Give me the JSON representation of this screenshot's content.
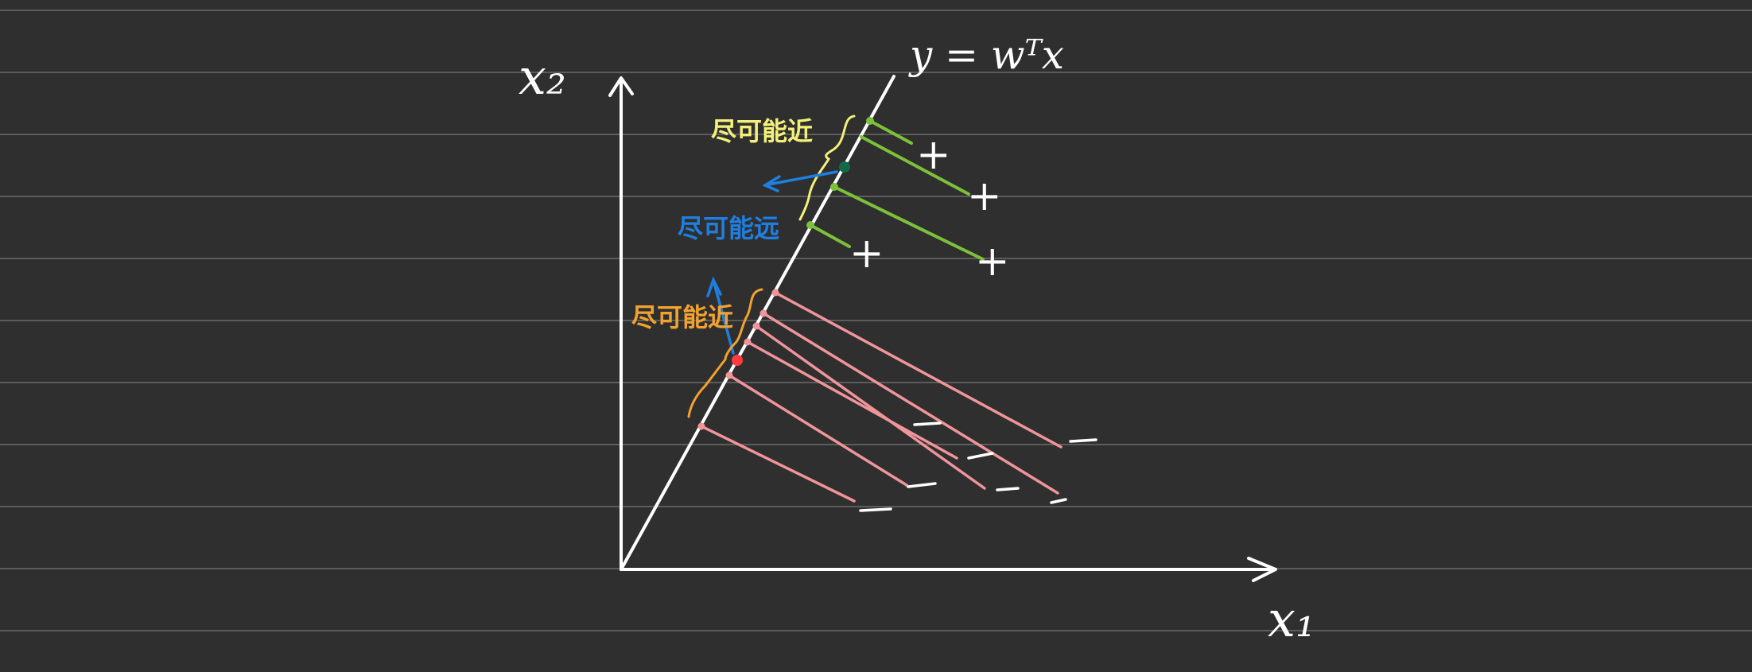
{
  "labels": {
    "x2_axis": "x₂",
    "x1_axis": "x₁",
    "line_equation": "y = wᵀx",
    "note_yellow": "尽可能近",
    "note_blue": "尽可能远",
    "note_orange": "尽可能近"
  },
  "markers": {
    "positive": "+",
    "negative": "−"
  },
  "colors": {
    "background": "#2f2f2f",
    "ruled_lines": "#5c5c5c",
    "axes": "#ffffff",
    "positive_class": "#7cc13a",
    "negative_class": "#f0959a",
    "yellow_note": "#f3f07a",
    "blue_note": "#1f7fe0",
    "orange_note": "#f2a22f",
    "positive_center": "#0f6b46",
    "negative_center": "#ff3b40"
  }
}
